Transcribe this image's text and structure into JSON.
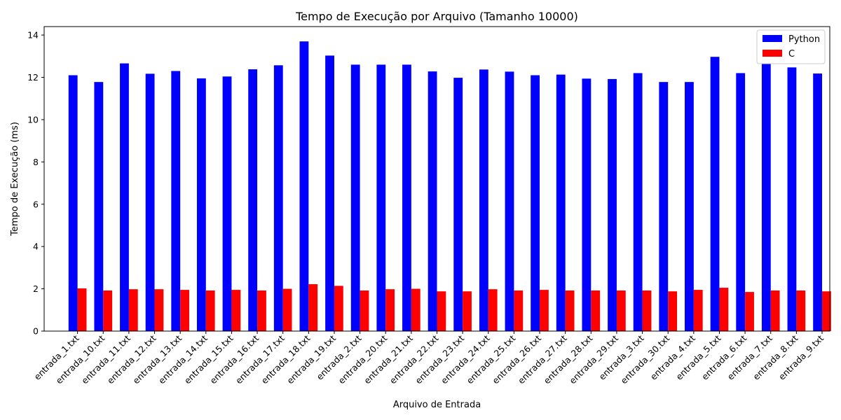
{
  "chart_data": {
    "type": "bar",
    "title": "Tempo de Execução por Arquivo (Tamanho 10000)",
    "xlabel": "Arquivo de Entrada",
    "ylabel": "Tempo de Execução (ms)",
    "ylim": [
      0,
      14.4
    ],
    "yticks": [
      0,
      2,
      4,
      6,
      8,
      10,
      12,
      14
    ],
    "grid": false,
    "legend_position": "top-right",
    "categories": [
      "entrada_1.txt",
      "entrada_10.txt",
      "entrada_11.txt",
      "entrada_12.txt",
      "entrada_13.txt",
      "entrada_14.txt",
      "entrada_15.txt",
      "entrada_16.txt",
      "entrada_17.txt",
      "entrada_18.txt",
      "entrada_19.txt",
      "entrada_2.txt",
      "entrada_20.txt",
      "entrada_21.txt",
      "entrada_22.txt",
      "entrada_23.txt",
      "entrada_24.txt",
      "entrada_25.txt",
      "entrada_26.txt",
      "entrada_27.txt",
      "entrada_28.txt",
      "entrada_29.txt",
      "entrada_3.txt",
      "entrada_30.txt",
      "entrada_4.txt",
      "entrada_5.txt",
      "entrada_6.txt",
      "entrada_7.txt",
      "entrada_8.txt",
      "entrada_9.txt"
    ],
    "series": [
      {
        "name": "Python",
        "color": "#0000ff",
        "values": [
          12.1,
          11.78,
          12.66,
          12.17,
          12.3,
          11.95,
          12.04,
          12.38,
          12.57,
          13.7,
          13.03,
          12.6,
          12.6,
          12.6,
          12.28,
          11.98,
          12.37,
          12.27,
          12.1,
          12.13,
          11.94,
          11.92,
          12.2,
          11.78,
          11.78,
          12.97,
          12.2,
          12.82,
          12.47,
          12.18
        ]
      },
      {
        "name": "C",
        "color": "#ff0000",
        "values": [
          2.02,
          1.92,
          1.98,
          1.98,
          1.95,
          1.92,
          1.95,
          1.92,
          2.0,
          2.22,
          2.14,
          1.92,
          1.98,
          2.0,
          1.88,
          1.88,
          1.98,
          1.92,
          1.95,
          1.92,
          1.92,
          1.92,
          1.92,
          1.88,
          1.95,
          2.05,
          1.85,
          1.92,
          1.92,
          1.88
        ]
      }
    ]
  }
}
